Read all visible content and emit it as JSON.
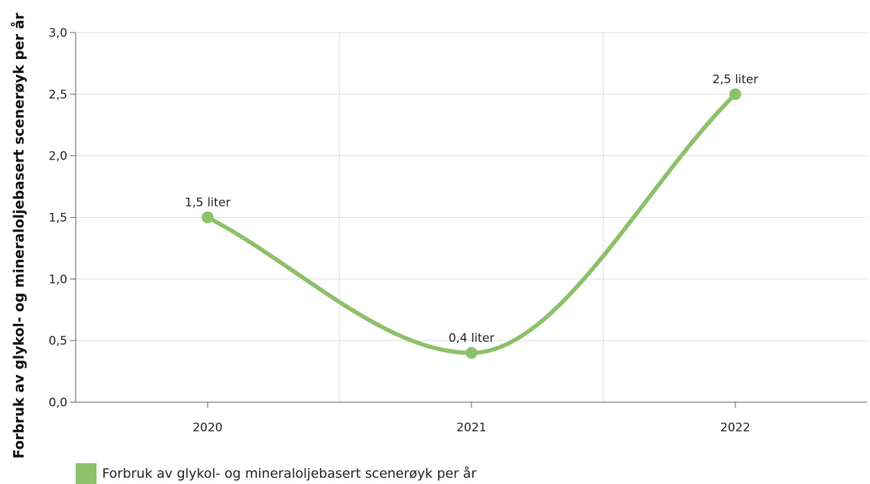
{
  "chart_data": {
    "type": "line",
    "categories": [
      "2020",
      "2021",
      "2022"
    ],
    "series": [
      {
        "name": "Forbruk av glykol- og mineraloljebasert scenerøyk per år",
        "values": [
          1.5,
          0.4,
          2.5
        ],
        "data_labels": [
          "1,5 liter",
          "0,4 liter",
          "2,5 liter"
        ],
        "color": "#8cc06a"
      }
    ],
    "ylabel": "Forbruk av glykol- og mineraloljebasert scenerøyk per år",
    "ylim": [
      0,
      3
    ],
    "yticks": [
      "0,0",
      "0,5",
      "1,0",
      "1,5",
      "2,0",
      "2,5",
      "3,0"
    ],
    "grid": true,
    "legend_position": "bottom-left",
    "smooth": true
  }
}
